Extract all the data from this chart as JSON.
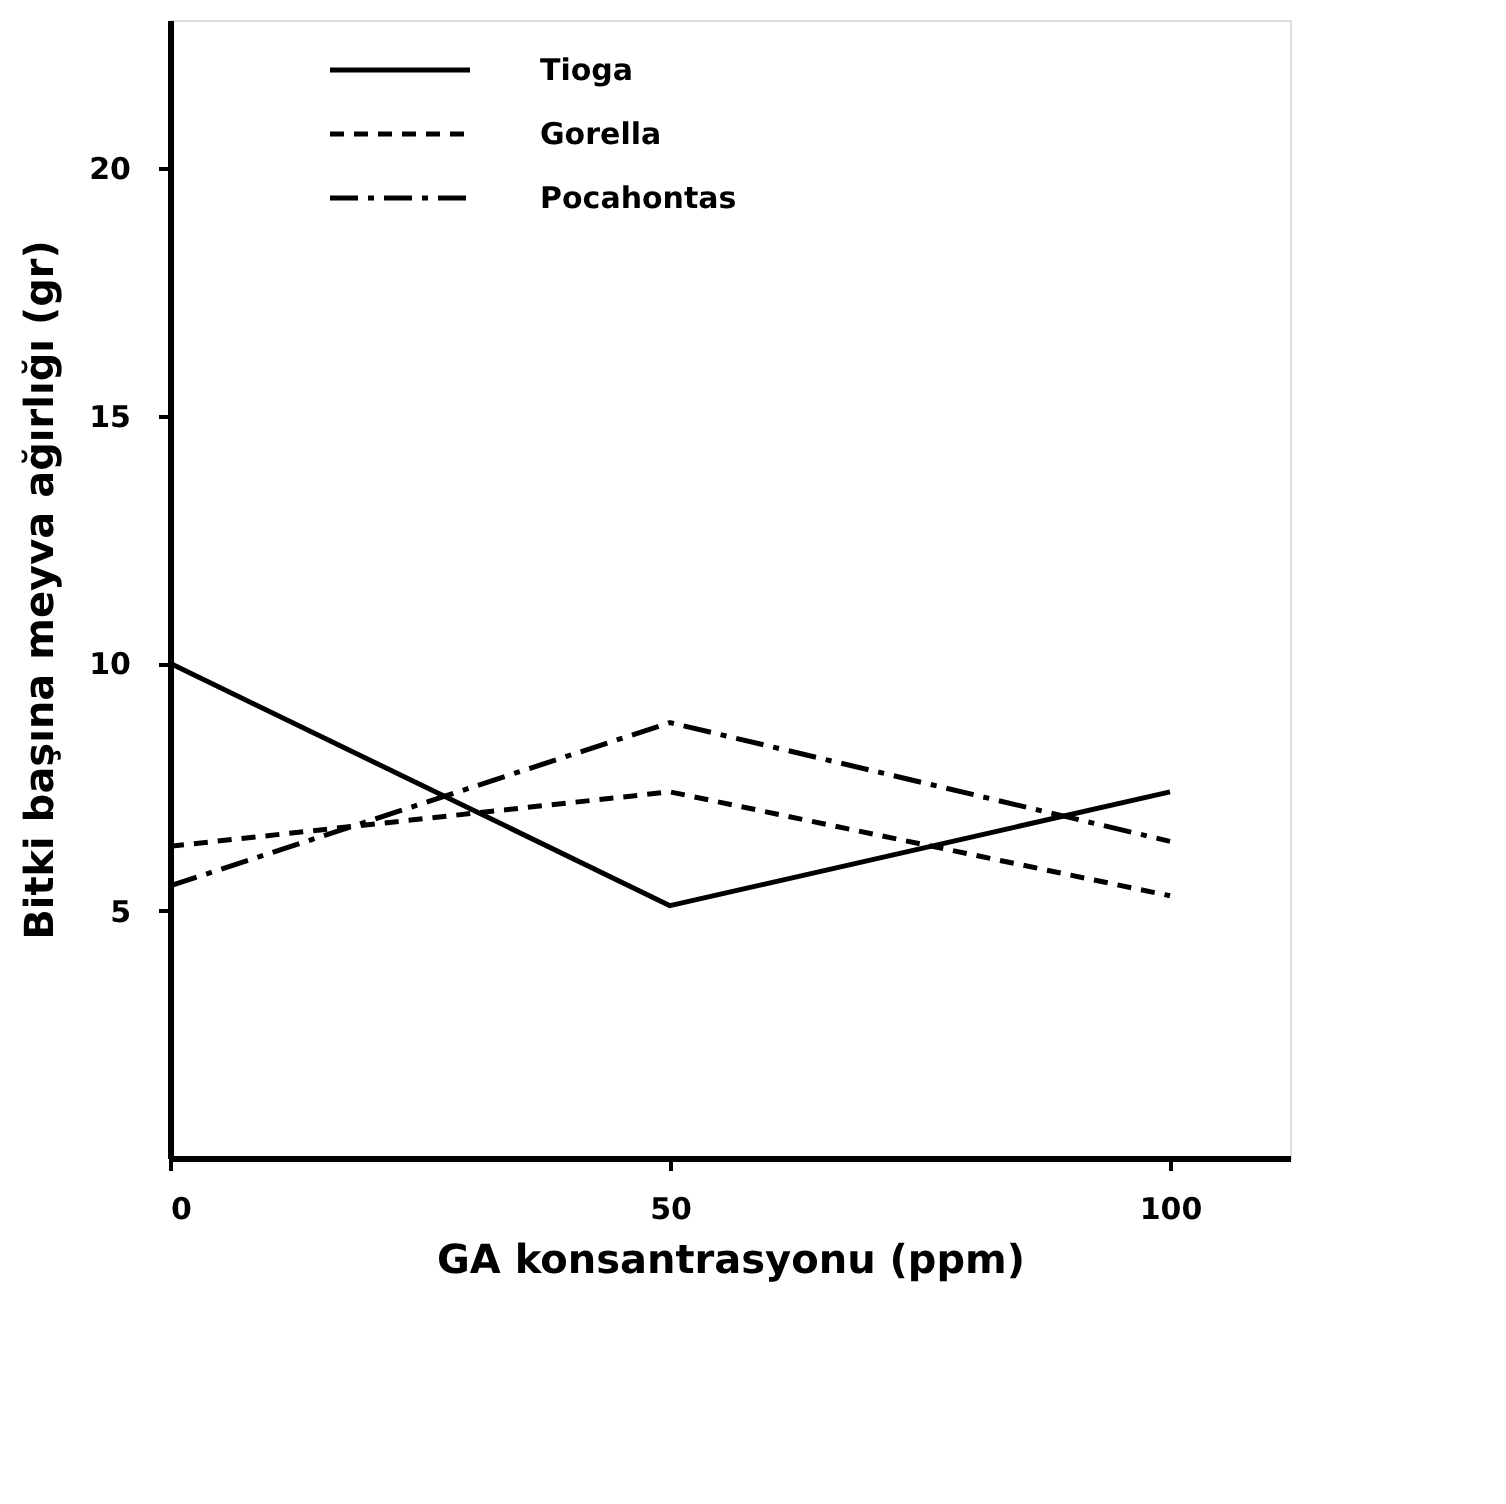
{
  "chart_data": {
    "type": "line",
    "xlabel": "GA konsantrasyonu (ppm)",
    "ylabel": "Bitki başına meyva ağırlığı  (gr)",
    "x": [
      0,
      50,
      100
    ],
    "series": [
      {
        "name": "Tioga",
        "color": "#000000",
        "line_style": "solid",
        "values": [
          10.0,
          5.1,
          7.4
        ]
      },
      {
        "name": "Gorella",
        "color": "#000000",
        "line_style": "dashed",
        "values": [
          6.3,
          7.4,
          5.3
        ]
      },
      {
        "name": "Pocahontas",
        "color": "#000000",
        "line_style": "dashdot",
        "values": [
          5.5,
          8.8,
          6.4
        ]
      }
    ],
    "xlim": [
      0,
      112
    ],
    "ylim": [
      0,
      23
    ],
    "xticks": [
      0,
      50,
      100
    ],
    "yticks": [
      5,
      10,
      15,
      20
    ],
    "grid": false,
    "legend": "top left",
    "marker": "none"
  }
}
